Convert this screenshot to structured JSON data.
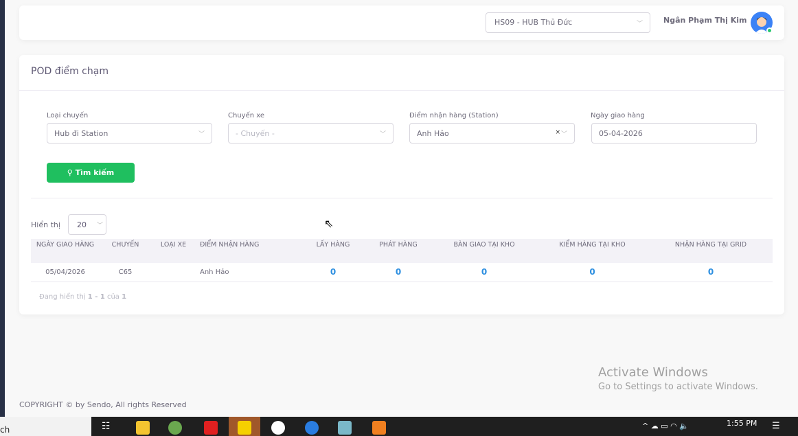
{
  "header": {
    "hub": "HS09 - HUB Thủ Đức",
    "user": "Ngân Phạm Thị Kim"
  },
  "page": {
    "title": "POD điểm chạm"
  },
  "filters": {
    "loai_chuyen": {
      "label": "Loại chuyến",
      "value": "Hub đi Station"
    },
    "chuyen_xe": {
      "label": "Chuyến xe",
      "placeholder": "- Chuyến -"
    },
    "diem_nhan": {
      "label": "Điểm nhận hàng (Station)",
      "value": "Anh Hảo"
    },
    "ngay": {
      "label": "Ngày giao hàng",
      "value": "05-04-2026"
    },
    "search": "Tìm kiếm"
  },
  "table": {
    "show_label": "Hiển thị",
    "page_size": "20",
    "columns": [
      "NGÀY GIAO HÀNG",
      "CHUYẾN",
      "LOẠI XE",
      "ĐIỂM NHẬN HÀNG",
      "LẤY HÀNG",
      "PHÁT HÀNG",
      "BÀN GIAO TẠI KHO",
      "KIỂM HÀNG TẠI KHO",
      "NHẬN HÀNG TẠI GRID"
    ],
    "rows": [
      [
        "05/04/2026",
        "C65",
        "",
        "Anh Hảo",
        "0",
        "0",
        "0",
        "0",
        "0"
      ]
    ],
    "info_prefix": "Đang hiển thị ",
    "info_range": "1 - 1",
    "info_mid": " của ",
    "info_total": "1"
  },
  "footer": "COPYRIGHT © by Sendo, All rights Reserved",
  "watermark": {
    "title": "Activate Windows",
    "sub": "Go to Settings to activate Windows."
  },
  "taskbar": {
    "search": "ch",
    "time": "1:55 PM"
  }
}
